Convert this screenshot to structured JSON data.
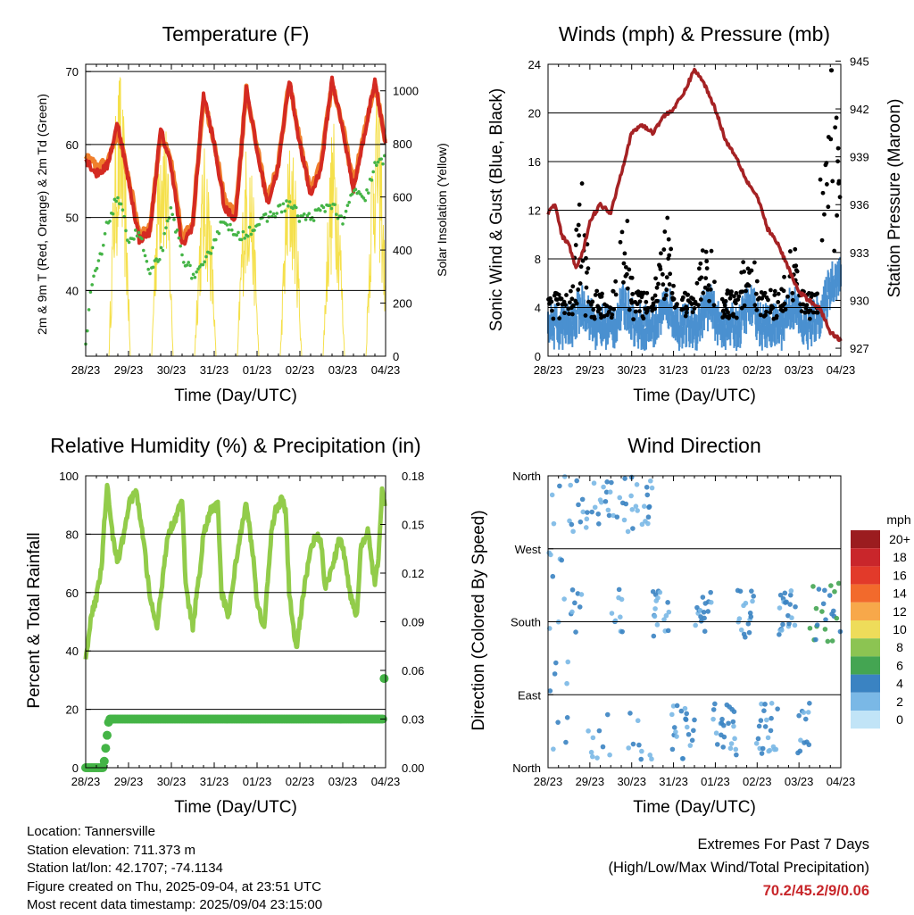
{
  "chart_data": [
    {
      "type": "line",
      "title": "Temperature (F)",
      "xlabel": "Time (Day/UTC)",
      "ylabel": "2m & 9m T (Red, Orange) & 2m Td (Green)",
      "y2label": "Solar Insolation (Yellow)",
      "x_ticks": [
        "28/23",
        "29/23",
        "30/23",
        "31/23",
        "01/23",
        "02/23",
        "03/23",
        "04/23"
      ],
      "ylim": [
        31,
        71
      ],
      "y_ticks": [
        40,
        50,
        60,
        70
      ],
      "y2lim": [
        0,
        1100
      ],
      "y2_ticks": [
        0,
        200,
        400,
        600,
        800,
        1000
      ],
      "grid": "horizontal",
      "series": [
        {
          "name": "2m T",
          "color": "#d42a22",
          "hours": [
            0,
            6,
            12,
            18,
            24,
            30,
            36,
            42,
            48,
            54,
            60,
            66,
            72,
            78,
            84,
            90,
            96,
            102,
            108,
            114,
            120,
            126,
            132,
            138,
            144,
            150,
            156,
            162,
            168
          ],
          "values": [
            58,
            56,
            57,
            63,
            55,
            47,
            48,
            62,
            57,
            46,
            49,
            67,
            60,
            51,
            50,
            68,
            59,
            52,
            57,
            69,
            60,
            53,
            57,
            69,
            62,
            54,
            61,
            69,
            60
          ]
        },
        {
          "name": "9m T",
          "color": "#f07f2c",
          "hours": [
            0,
            6,
            12,
            18,
            24,
            30,
            36,
            42,
            48,
            54,
            60,
            66,
            72,
            78,
            84,
            90,
            96,
            102,
            108,
            114,
            120,
            126,
            132,
            138,
            144,
            150,
            156,
            162,
            168
          ],
          "values": [
            58.5,
            57,
            57.5,
            62,
            55.5,
            48,
            48.5,
            61.5,
            57.5,
            47,
            49.5,
            66.5,
            60.5,
            52,
            50.5,
            67.5,
            59.5,
            52.5,
            57.5,
            68.5,
            60.5,
            53.5,
            57.5,
            68.5,
            62.5,
            54.5,
            61.5,
            68.5,
            60.5
          ]
        },
        {
          "name": "2m Td",
          "color": "#44b446",
          "hours": [
            0,
            3,
            6,
            9,
            12,
            18,
            24,
            30,
            36,
            42,
            48,
            54,
            60,
            66,
            72,
            78,
            84,
            90,
            96,
            102,
            108,
            114,
            120,
            126,
            132,
            138,
            144,
            150,
            156,
            162,
            168
          ],
          "values": [
            32,
            40,
            43,
            45,
            49,
            53,
            47,
            48,
            42,
            45,
            51,
            45,
            42,
            43,
            47,
            50,
            47,
            48,
            49,
            50,
            51,
            52,
            50,
            50,
            51,
            52,
            49,
            54,
            52,
            57,
            58
          ]
        },
        {
          "name": "Solar Insolation",
          "color": "#f5e04c",
          "axis": "right",
          "day_peaks_hours": [
            19,
            43,
            67,
            91,
            115,
            139,
            163
          ],
          "peak_values": [
            1100,
            1050,
            800,
            850,
            850,
            900,
            1050
          ]
        }
      ]
    },
    {
      "type": "scatter",
      "title": "Winds (mph) & Pressure (mb)",
      "xlabel": "Time (Day/UTC)",
      "ylabel": "Sonic Wind & Gust (Blue, Black)",
      "y2label": "Station Pressure (Maroon)",
      "x_ticks": [
        "28/23",
        "29/23",
        "30/23",
        "31/23",
        "01/23",
        "02/23",
        "03/23",
        "04/23"
      ],
      "ylim": [
        0,
        24
      ],
      "y_ticks": [
        0,
        4,
        8,
        12,
        16,
        20,
        24
      ],
      "y2lim": [
        926.5,
        944.8
      ],
      "y2_ticks": [
        927,
        930,
        933,
        936,
        939,
        942,
        945
      ],
      "grid": "horizontal",
      "series": [
        {
          "name": "Sonic Wind",
          "color": "#4a90d0"
        },
        {
          "name": "Gust",
          "color": "#000000"
        },
        {
          "name": "Station Pressure",
          "color": "#a52224",
          "hours": [
            0,
            4,
            8,
            12,
            16,
            20,
            24,
            30,
            36,
            42,
            48,
            54,
            60,
            66,
            72,
            78,
            84,
            90,
            96,
            102,
            108,
            114,
            120,
            126,
            132,
            138,
            144,
            150,
            156,
            162,
            168
          ],
          "values": [
            935.5,
            936,
            934,
            933.5,
            932,
            933,
            935,
            936,
            935.5,
            938,
            940.5,
            941,
            940.5,
            941.5,
            942,
            943,
            944.5,
            943.5,
            942,
            940,
            939,
            937.5,
            936.5,
            934.5,
            933.5,
            932,
            930.5,
            930,
            929.5,
            928,
            927.5
          ]
        }
      ]
    },
    {
      "type": "line",
      "title": "Relative Humidity (%) & Precipitation (in)",
      "xlabel": "Time (Day/UTC)",
      "ylabel": "Percent & Total Rainfall",
      "x_ticks": [
        "28/23",
        "29/23",
        "30/23",
        "31/23",
        "01/23",
        "02/23",
        "03/23",
        "04/23"
      ],
      "ylim": [
        0,
        100
      ],
      "y_ticks": [
        0,
        20,
        40,
        60,
        80,
        100
      ],
      "y2lim": [
        0,
        0.18
      ],
      "y2_ticks": [
        "0.00",
        "0.03",
        "0.06",
        "0.09",
        "0.12",
        "0.15",
        "0.18"
      ],
      "grid": "horizontal",
      "series": [
        {
          "name": "Relative Humidity",
          "color": "#92cc4a",
          "hours": [
            0,
            3,
            6,
            9,
            12,
            15,
            18,
            22,
            24,
            28,
            32,
            36,
            40,
            44,
            46,
            50,
            54,
            56,
            60,
            64,
            66,
            70,
            74,
            76,
            80,
            84,
            88,
            90,
            94,
            96,
            100,
            104,
            106,
            110,
            112,
            114,
            118,
            122,
            126,
            128,
            130,
            132,
            134,
            138,
            142,
            144,
            148,
            152,
            154,
            158,
            162,
            164,
            166,
            168
          ],
          "values": [
            37,
            52,
            58,
            70,
            98,
            80,
            70,
            82,
            90,
            95,
            80,
            58,
            48,
            70,
            80,
            85,
            92,
            62,
            48,
            68,
            80,
            88,
            90,
            60,
            52,
            70,
            85,
            90,
            72,
            56,
            48,
            80,
            88,
            92,
            88,
            60,
            40,
            60,
            75,
            78,
            80,
            76,
            62,
            68,
            78,
            76,
            60,
            52,
            75,
            82,
            62,
            72,
            95,
            88
          ]
        },
        {
          "name": "Total Precipitation",
          "color": "#44b446",
          "axis": "right",
          "hours": [
            0,
            6,
            12,
            13,
            18,
            48,
            96,
            144,
            167,
            168
          ],
          "values": [
            0,
            0,
            0,
            0.03,
            0.03,
            0.03,
            0.03,
            0.03,
            0.03,
            0.055
          ]
        }
      ]
    },
    {
      "type": "scatter",
      "title": "Wind Direction",
      "xlabel": "Time (Day/UTC)",
      "ylabel": "Direction (Colored By Speed)",
      "x_ticks": [
        "28/23",
        "29/23",
        "30/23",
        "31/23",
        "01/23",
        "02/23",
        "03/23",
        "04/23"
      ],
      "y_ticks": [
        "North",
        "East",
        "South",
        "West",
        "North"
      ],
      "grid": "horizontal",
      "legend": {
        "title": "mph",
        "position": "right",
        "labels": [
          "20+",
          "18",
          "16",
          "14",
          "12",
          "10",
          "8",
          "6",
          "4",
          "2",
          "0"
        ],
        "colors": [
          "#9b1c1f",
          "#c9262b",
          "#e23a2a",
          "#f26a2c",
          "#f7a84a",
          "#eedc5a",
          "#8cc452",
          "#44a552",
          "#3a83c2",
          "#7ab8e6",
          "#c1e4f7"
        ]
      }
    }
  ],
  "footer": {
    "location": "Location: Tannersville",
    "elevation": "Station elevation: 711.373 m",
    "latlon": "Station lat/lon: 42.1707; -74.1134",
    "created": "Figure created on Thu, 2025-09-04, at 23:51 UTC",
    "recent": "Most recent data timestamp: 2025/09/04 23:15:00"
  },
  "extremes": {
    "title": "Extremes For Past 7 Days",
    "subtitle": "(High/Low/Max Wind/Total Precipitation)",
    "values": "70.2/45.2/9/0.06"
  }
}
